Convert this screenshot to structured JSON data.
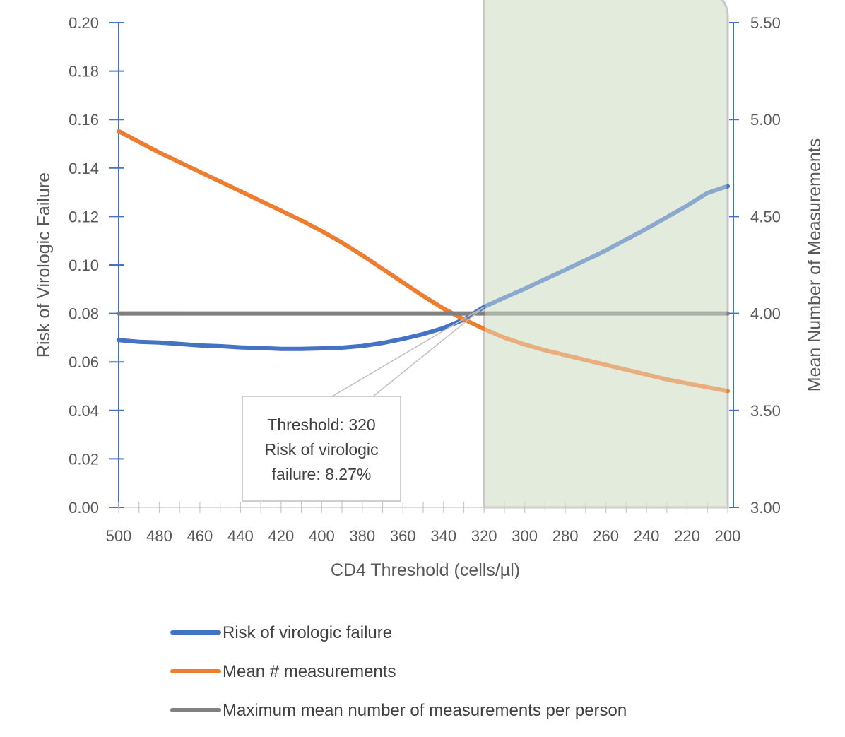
{
  "chart_data": {
    "type": "line",
    "xlabel": "CD4 Threshold (cells/µl)",
    "ylabel_left": "Risk of Virologic Failure",
    "ylabel_right": "Mean Number of Measurements",
    "x": [
      500,
      480,
      460,
      440,
      420,
      400,
      380,
      360,
      340,
      320,
      300,
      280,
      260,
      240,
      220,
      200
    ],
    "x_tick_labels": [
      "500",
      "480",
      "460",
      "440",
      "420",
      "400",
      "380",
      "360",
      "340",
      "320",
      "300",
      "280",
      "260",
      "240",
      "220",
      "200"
    ],
    "xlim": [
      500,
      200
    ],
    "ylim_left": [
      0,
      0.2
    ],
    "y_left_ticks": [
      "0.00",
      "0.02",
      "0.04",
      "0.06",
      "0.08",
      "0.10",
      "0.12",
      "0.14",
      "0.16",
      "0.18",
      "0.20"
    ],
    "ylim_right": [
      3.0,
      5.5
    ],
    "y_right_ticks": [
      "3.00",
      "3.50",
      "4.00",
      "4.50",
      "5.00",
      "5.50"
    ],
    "series": [
      {
        "name": "Risk of virologic failure",
        "axis": "left",
        "color": "#4472C4",
        "x": [
          500,
          490,
          480,
          470,
          460,
          450,
          440,
          430,
          420,
          410,
          400,
          390,
          380,
          370,
          360,
          350,
          340,
          330,
          320,
          310,
          300,
          290,
          280,
          270,
          260,
          250,
          240,
          230,
          220,
          210,
          200
        ],
        "values": [
          0.069,
          0.0683,
          0.068,
          0.0674,
          0.0668,
          0.0665,
          0.066,
          0.0657,
          0.0654,
          0.0654,
          0.0656,
          0.0659,
          0.0666,
          0.0678,
          0.0695,
          0.0715,
          0.074,
          0.0775,
          0.0827,
          0.0865,
          0.0902,
          0.0941,
          0.098,
          0.102,
          0.106,
          0.1105,
          0.115,
          0.1197,
          0.1245,
          0.1297,
          0.1325
        ]
      },
      {
        "name": "Mean # measurements",
        "axis": "right",
        "color": "#ED7D31",
        "x": [
          500,
          490,
          480,
          470,
          460,
          450,
          440,
          430,
          420,
          410,
          400,
          390,
          380,
          370,
          360,
          350,
          340,
          330,
          320,
          310,
          300,
          290,
          280,
          270,
          260,
          250,
          240,
          230,
          220,
          210,
          200
        ],
        "values": [
          4.94,
          4.885,
          4.83,
          4.78,
          4.73,
          4.68,
          4.63,
          4.58,
          4.53,
          4.48,
          4.425,
          4.365,
          4.3,
          4.23,
          4.16,
          4.09,
          4.025,
          3.97,
          3.92,
          3.875,
          3.84,
          3.81,
          3.785,
          3.76,
          3.735,
          3.71,
          3.685,
          3.66,
          3.64,
          3.62,
          3.6
        ]
      },
      {
        "name": "Maximum mean number of measurements per person",
        "axis": "right",
        "color": "#808080",
        "x": [
          500,
          200
        ],
        "values": [
          4.0,
          4.0
        ]
      }
    ],
    "highlight_region": {
      "x_from": 320,
      "x_to": 200,
      "color": "#E2EBDC"
    },
    "annotation": {
      "lines": [
        "Threshold: 320",
        "Risk of virologic",
        "failure: 8.27%"
      ],
      "point_x": 320,
      "point_y": 0.0827
    },
    "legend_position": "bottom"
  }
}
